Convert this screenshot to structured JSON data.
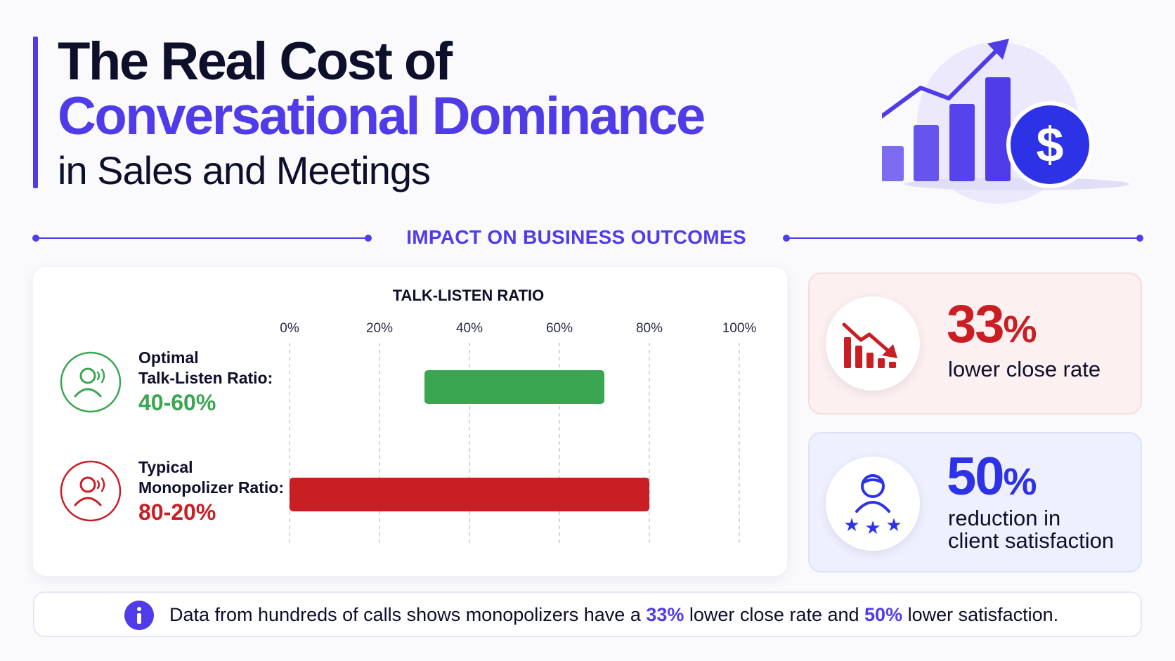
{
  "header": {
    "title_line1": "The Real Cost of",
    "title_line2": "Conversational Dominance",
    "title_line3": "in Sales and Meetings"
  },
  "section": {
    "label": "IMPACT ON BUSINESS OUTCOMES"
  },
  "chart_data": {
    "type": "bar",
    "orientation": "horizontal",
    "title": "TALK-LISTEN RATIO",
    "x_ticks": [
      "0%",
      "20%",
      "40%",
      "60%",
      "80%",
      "100%"
    ],
    "xlim": [
      0,
      100
    ],
    "grid": "vertical dashed",
    "categories": [
      "Optimal Talk-Listen Ratio:",
      "Typical Monopolizer Ratio:"
    ],
    "series": [
      {
        "category": "Optimal Talk-Listen Ratio:",
        "start": 30,
        "end": 70,
        "color": "#3aa651"
      },
      {
        "category": "Typical Monopolizer Ratio:",
        "start": 0,
        "end": 80,
        "color": "#c81e24"
      }
    ]
  },
  "rows": [
    {
      "label_line1": "Optimal",
      "label_line2": "Talk-Listen Ratio:",
      "value": "40-60%",
      "color": "#3aa651",
      "icon": "person-speaking-icon"
    },
    {
      "label_line1": "Typical",
      "label_line2": "Monopolizer Ratio:",
      "value": "80-20%",
      "color": "#c81e24",
      "icon": "person-speaking-icon"
    }
  ],
  "stats": [
    {
      "number": "33",
      "percent": "%",
      "line1": "lower close rate",
      "line2": "",
      "color": "#c81e24",
      "icon": "declining-bar-chart-icon"
    },
    {
      "number": "50",
      "percent": "%",
      "line1": "reduction in",
      "line2": "client satisfaction",
      "color": "#4f3ce8",
      "icon": "client-rating-icon"
    }
  ],
  "footer": {
    "part1": "Data from hundreds of calls shows monopolizers have a ",
    "hl1": "33%",
    "part2": " lower close rate and ",
    "hl2": "50%",
    "part3": " lower satisfaction.",
    "icon": "info-icon"
  },
  "colors": {
    "accent": "#4f3ce8",
    "green": "#3aa651",
    "red": "#c81e24"
  }
}
